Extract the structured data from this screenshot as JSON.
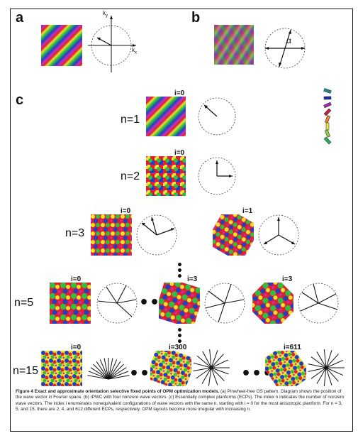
{
  "panels": {
    "a": "a",
    "b": "b",
    "c": "c"
  },
  "axes": {
    "ky": "k",
    "ky_sub": "y",
    "kx": "k",
    "kx_sub": "x",
    "alpha": "α"
  },
  "rows": {
    "n1": "n=1",
    "n2": "n=2",
    "n3": "n=3",
    "n5": "n=5",
    "n15": "n=15"
  },
  "indices": {
    "n1_i0": "i=0",
    "n2_i0": "i=0",
    "n3_i0": "i=0",
    "n3_i1": "i=1",
    "n5_i0": "i=0",
    "n5_i3a": "i=3",
    "n5_i3b": "i=3",
    "n15_i0": "i=0",
    "n15_i300": "i=300",
    "n15_i611": "i=611"
  },
  "ellipsis": "•••",
  "caption": {
    "title": "Figure 4 Exact and approximate orientation selective fixed points of OPM optimization models.",
    "body": " (a) Pinwheel-free OS pattern. Diagram shows the position of the wave vector in Fourier space. (b) rPWC with four nonzero wave vectors. (c) Essentially complex planforms (ECPs). The index n indicates the number of nonzero wave vectors. The index i enumerates nonequivalent configurations of wave vectors with the same n, starting with i = 0 for the most anisotropic planform. For n = 3, 5, and 15, there are 2, 4, and 612 different ECPs, respectively. OPM layouts become more irregular with increasing n."
  },
  "legend_colors": [
    "#1f8a8a",
    "#1a2fa8",
    "#9a2ab8",
    "#c0203a",
    "#e8802a",
    "#e8e840",
    "#8ad040",
    "#20b050"
  ]
}
